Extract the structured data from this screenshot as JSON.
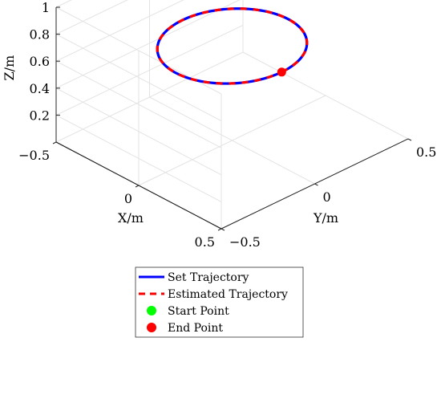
{
  "chart_data": {
    "type": "line",
    "projection": "3d",
    "xlabel": "X/m",
    "ylabel": "Y/m",
    "zlabel": "Z/m",
    "xlim": [
      -0.5,
      0.5
    ],
    "ylim": [
      -0.5,
      0.5
    ],
    "zlim": [
      0,
      1
    ],
    "xticks": [
      {
        "value": -0.5,
        "label": "−0.5"
      },
      {
        "value": 0,
        "label": "0"
      },
      {
        "value": 0.5,
        "label": "0.5"
      }
    ],
    "yticks": [
      {
        "value": -0.5,
        "label": "−0.5"
      },
      {
        "value": 0,
        "label": "0"
      },
      {
        "value": 0.5,
        "label": "0.5"
      }
    ],
    "zticks": [
      {
        "value": 0.2,
        "label": "0.2"
      },
      {
        "value": 0.4,
        "label": "0.4"
      },
      {
        "value": 0.6,
        "label": "0.6"
      },
      {
        "value": 0.8,
        "label": "0.8"
      },
      {
        "value": 1,
        "label": "1"
      }
    ],
    "grid": true,
    "legend_position": "bottom-center",
    "series": [
      {
        "name": "Set Trajectory",
        "style": "solid",
        "color": "#0000ff",
        "shape": "circle",
        "center": [
          0,
          0,
          0.7
        ],
        "radius": 0.3
      },
      {
        "name": "Estimated Trajectory",
        "style": "dashed",
        "color": "#ff0000",
        "shape": "circle",
        "center": [
          0,
          0,
          0.7
        ],
        "radius": 0.3
      },
      {
        "name": "Start Point",
        "style": "marker",
        "color": "#00ff00",
        "point": [
          0.3,
          0,
          0.7
        ]
      },
      {
        "name": "End Point",
        "style": "marker",
        "color": "#ff0000",
        "point": [
          0.3,
          0,
          0.7
        ]
      }
    ]
  }
}
